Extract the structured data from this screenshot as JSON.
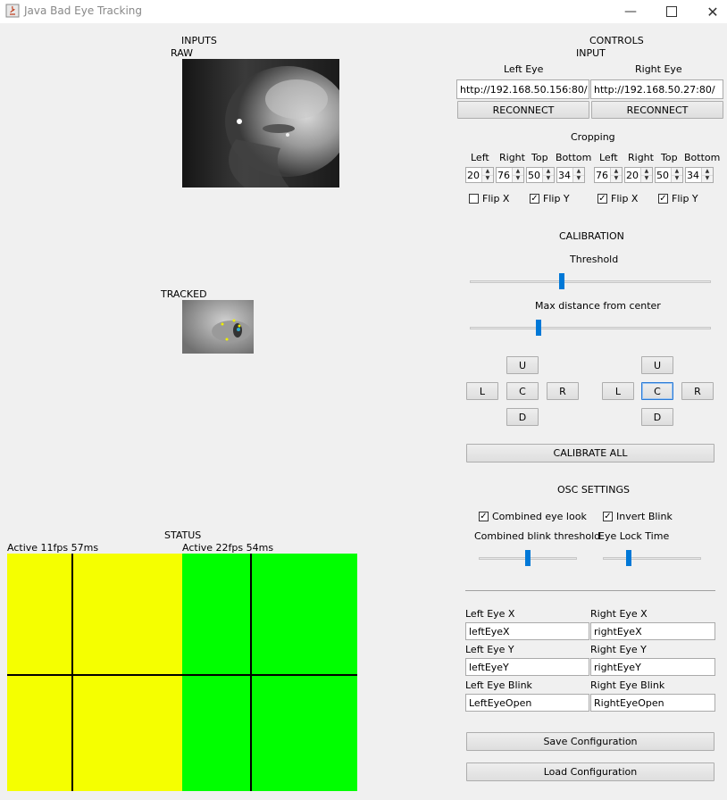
{
  "window": {
    "title": "Java Bad Eye Tracking"
  },
  "inputs": {
    "heading": "INPUTS",
    "raw_label": "RAW",
    "tracked_label": "TRACKED"
  },
  "controls": {
    "heading": "CONTROLS",
    "input_heading": "INPUT",
    "left_eye_label": "Left Eye",
    "right_eye_label": "Right Eye",
    "left_url": "http://192.168.50.156:80/",
    "right_url": "http://192.168.50.27:80/",
    "reconnect_label": "RECONNECT",
    "cropping_heading": "Cropping",
    "crop_headers": [
      "Left",
      "Right",
      "Top",
      "Bottom"
    ],
    "left_crop": [
      "20",
      "76",
      "50",
      "34"
    ],
    "right_crop": [
      "76",
      "20",
      "50",
      "34"
    ],
    "flip_x_label": "Flip X",
    "flip_y_label": "Flip Y",
    "left_flip": {
      "x": false,
      "y": true
    },
    "right_flip": {
      "x": true,
      "y": true
    }
  },
  "calibration": {
    "heading": "CALIBRATION",
    "threshold_label": "Threshold",
    "threshold_value": 0.38,
    "max_distance_label": "Max distance from center",
    "max_distance_value": 0.28,
    "dir_up": "U",
    "dir_left": "L",
    "dir_center": "C",
    "dir_right": "R",
    "dir_down": "D",
    "calibrate_all_label": "CALIBRATE ALL"
  },
  "osc": {
    "heading": "OSC SETTINGS",
    "combined_eye_look_label": "Combined eye look",
    "combined_eye_look_checked": true,
    "invert_blink_label": "Invert Blink",
    "invert_blink_checked": true,
    "combined_blink_threshold_label": "Combined blink threshold",
    "combined_blink_threshold_value": 0.5,
    "eye_lock_time_label": "Eye Lock Time",
    "eye_lock_time_value": 0.25,
    "left_eye_x_label": "Left Eye X",
    "left_eye_x_value": "leftEyeX",
    "right_eye_x_label": "Right Eye X",
    "right_eye_x_value": "rightEyeX",
    "left_eye_y_label": "Left Eye Y",
    "left_eye_y_value": "leftEyeY",
    "right_eye_y_label": "Right Eye Y",
    "right_eye_y_value": "rightEyeY",
    "left_eye_blink_label": "Left Eye Blink",
    "left_eye_blink_value": "LeftEyeOpen",
    "right_eye_blink_label": "Right Eye Blink",
    "right_eye_blink_value": "RightEyeOpen",
    "save_label": "Save Configuration",
    "load_label": "Load Configuration"
  },
  "status": {
    "heading": "STATUS",
    "left_status": "Active 11fps 57ms",
    "right_status": "Active 22fps 54ms",
    "left_color": "#f5ff00",
    "right_color": "#00ff00"
  }
}
